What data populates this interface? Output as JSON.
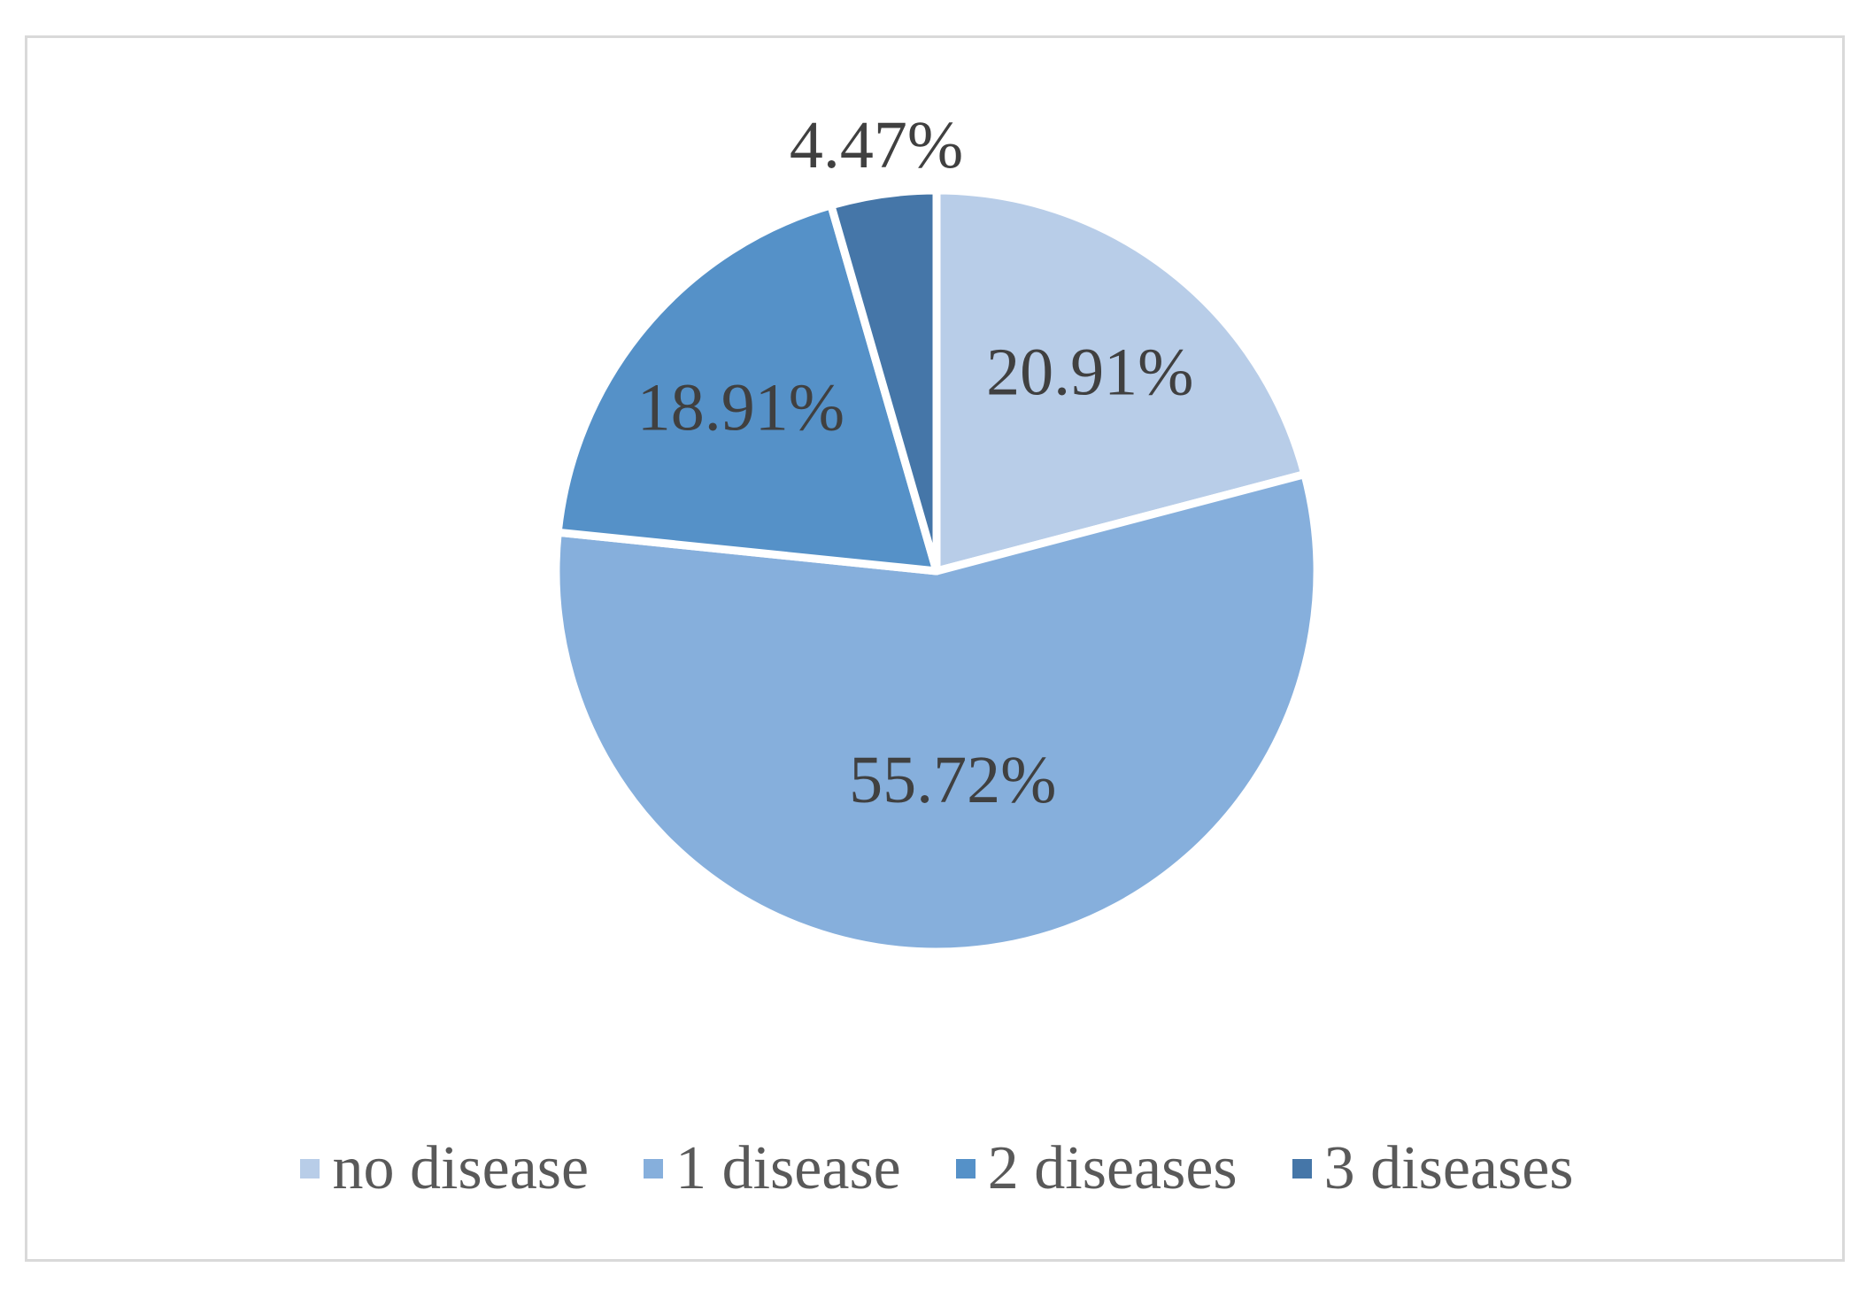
{
  "chart_data": {
    "type": "pie",
    "categories": [
      "no disease",
      "1 disease",
      "2 diseases",
      "3 diseases"
    ],
    "values": [
      20.91,
      55.72,
      18.91,
      4.47
    ],
    "labels": [
      "20.91%",
      "55.72%",
      "18.91%",
      "4.47%"
    ],
    "colors": [
      "#b8cde8",
      "#86afdc",
      "#5591c8",
      "#4576a8"
    ],
    "start_angle_deg": 0,
    "direction": "clockwise",
    "legend": "bottom",
    "title": ""
  }
}
